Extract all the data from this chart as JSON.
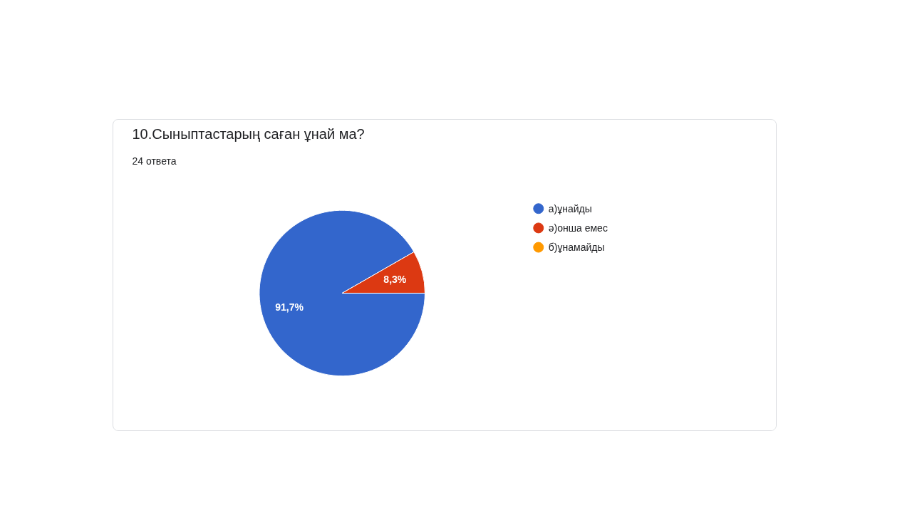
{
  "chart_data": {
    "type": "pie",
    "title": "10.Сыныптастарың саған ұнай ма?",
    "subtitle": "24 ответа",
    "categories": [
      "а)ұнайды",
      "ә)онша емес",
      "б)ұнамайды"
    ],
    "values": [
      91.7,
      8.3,
      0
    ],
    "colors": [
      "#3366cc",
      "#dc3912",
      "#ff9900"
    ],
    "value_labels": [
      "91,7%",
      "8,3%",
      null
    ],
    "legend": "right"
  }
}
